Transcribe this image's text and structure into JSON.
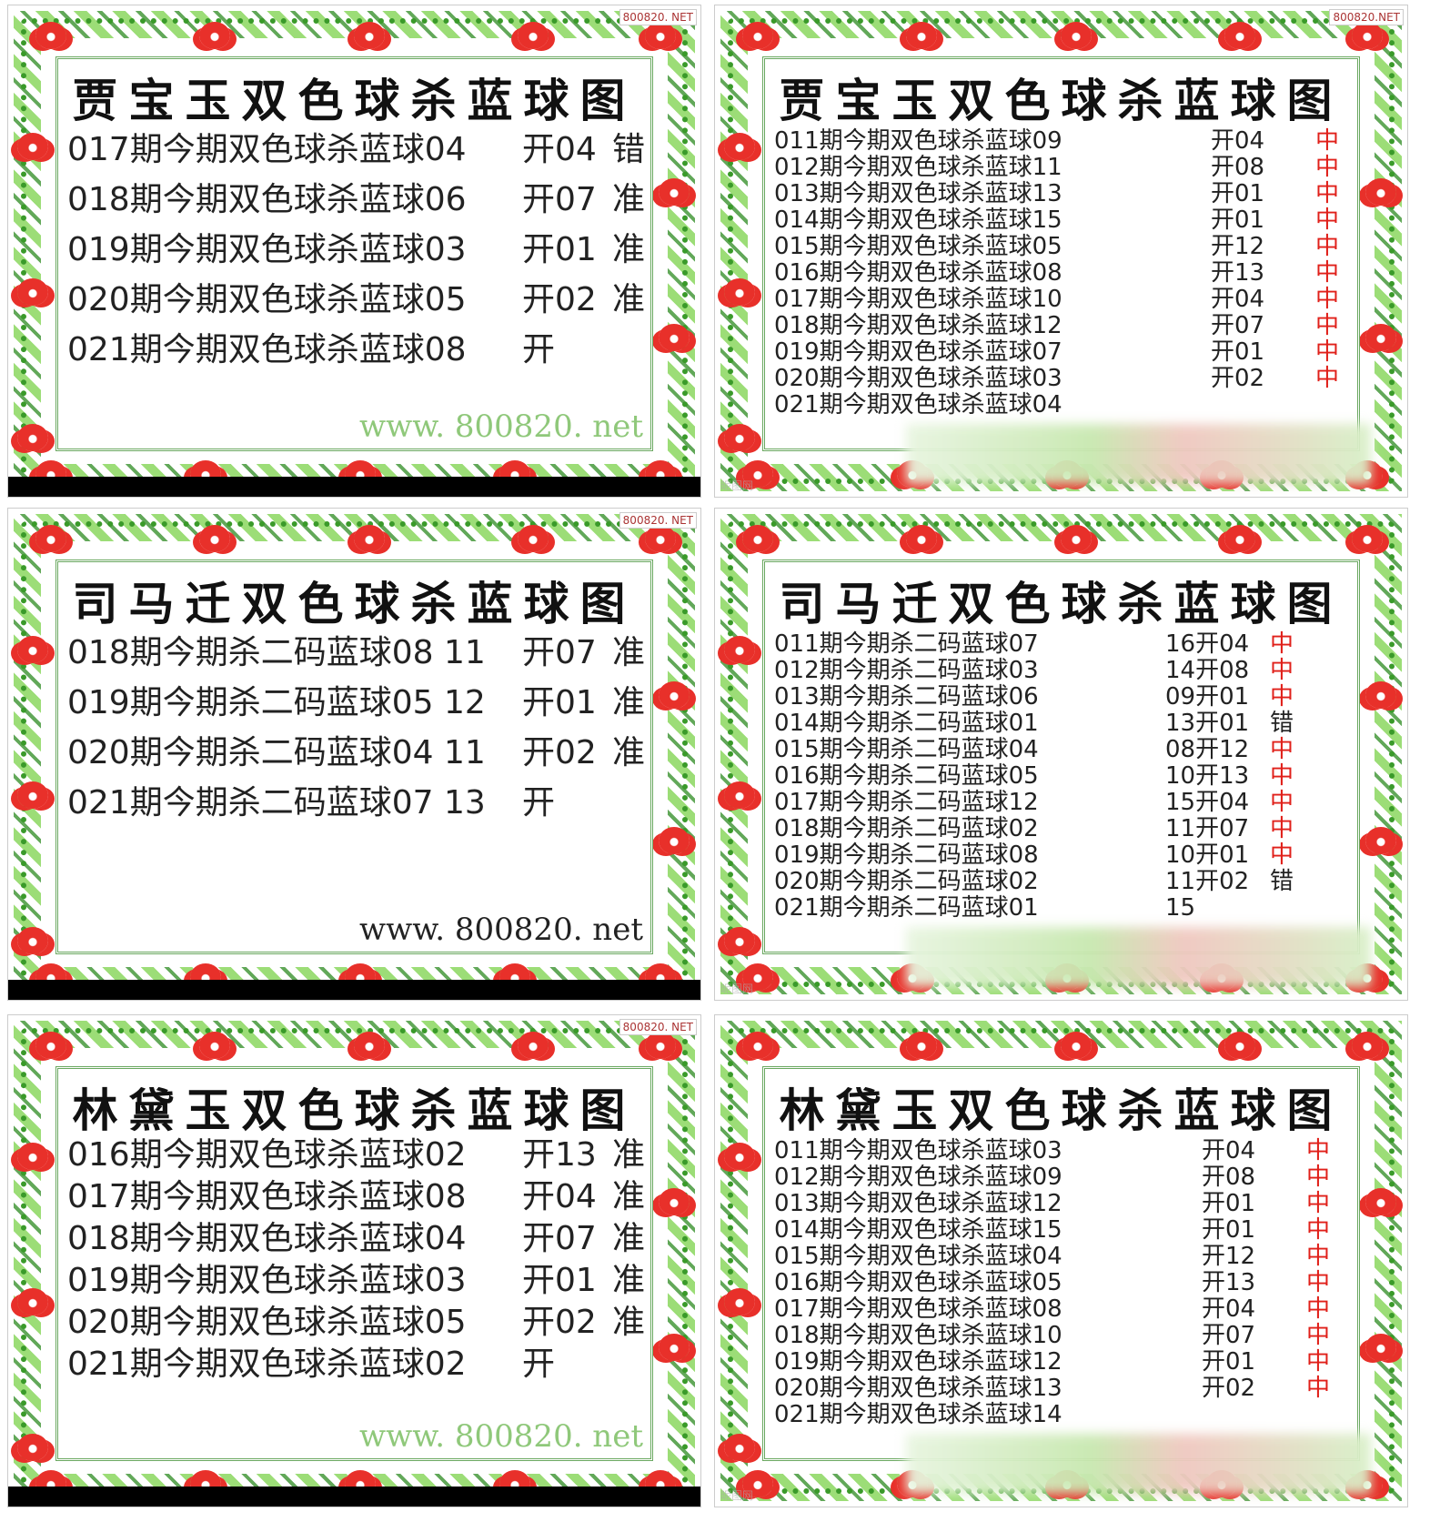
{
  "watermark": "800820. NET",
  "colors": {
    "hit": "#e0201a",
    "text": "#222222",
    "vine": "#3a9a2a",
    "flower": "#e8302a"
  },
  "panels": [
    {
      "title": "贾宝玉双色球杀蓝球图",
      "style": "large",
      "url": "www. 800820. net",
      "url_color": "#8fc87a",
      "watermark": "800820. NET",
      "rows": [
        {
          "text": "017期今期双色球杀蓝球04",
          "open": "开04",
          "status": "错"
        },
        {
          "text": "018期今期双色球杀蓝球06",
          "open": "开07",
          "status": "准"
        },
        {
          "text": "019期今期双色球杀蓝球03",
          "open": "开01",
          "status": "准"
        },
        {
          "text": "020期今期双色球杀蓝球05",
          "open": "开02",
          "status": "准"
        },
        {
          "text": "021期今期双色球杀蓝球08",
          "open": "开",
          "status": ""
        }
      ]
    },
    {
      "title": "贾宝玉双色球杀蓝球图",
      "style": "small",
      "watermark": "800820.NET",
      "rows": [
        {
          "text": "011期今期双色球杀蓝球09",
          "open": "开04",
          "status": "中"
        },
        {
          "text": "012期今期双色球杀蓝球11",
          "open": "开08",
          "status": "中"
        },
        {
          "text": "013期今期双色球杀蓝球13",
          "open": "开01",
          "status": "中"
        },
        {
          "text": "014期今期双色球杀蓝球15",
          "open": "开01",
          "status": "中"
        },
        {
          "text": "015期今期双色球杀蓝球05",
          "open": "开12",
          "status": "中"
        },
        {
          "text": "016期今期双色球杀蓝球08",
          "open": "开13",
          "status": "中"
        },
        {
          "text": "017期今期双色球杀蓝球10",
          "open": "开04",
          "status": "中"
        },
        {
          "text": "018期今期双色球杀蓝球12",
          "open": "开07",
          "status": "中"
        },
        {
          "text": "019期今期双色球杀蓝球07",
          "open": "开01",
          "status": "中"
        },
        {
          "text": "020期今期双色球杀蓝球03",
          "open": "开02",
          "status": "中"
        },
        {
          "text": "021期今期双色球杀蓝球04",
          "open": "",
          "status": ""
        }
      ]
    },
    {
      "title": "司马迁双色球杀蓝球图",
      "style": "large",
      "url": "www. 800820. net",
      "url_color": "#222222",
      "watermark": "800820. NET",
      "rows": [
        {
          "text": "018期今期杀二码蓝球08  11",
          "open": "开07",
          "status": "准"
        },
        {
          "text": "019期今期杀二码蓝球05  12",
          "open": "开01",
          "status": "准"
        },
        {
          "text": "020期今期杀二码蓝球04  11",
          "open": "开02",
          "status": "准"
        },
        {
          "text": "021期今期杀二码蓝球07  13",
          "open": "开",
          "status": ""
        }
      ]
    },
    {
      "title": "司马迁双色球杀蓝球图",
      "style": "small",
      "rows": [
        {
          "text": "011期今期杀二码蓝球07",
          "open": "16开04",
          "status": "中"
        },
        {
          "text": "012期今期杀二码蓝球03",
          "open": "14开08",
          "status": "中"
        },
        {
          "text": "013期今期杀二码蓝球06",
          "open": "09开01",
          "status": "中"
        },
        {
          "text": "014期今期杀二码蓝球01",
          "open": "13开01",
          "status": "错"
        },
        {
          "text": "015期今期杀二码蓝球04",
          "open": "08开12",
          "status": "中"
        },
        {
          "text": "016期今期杀二码蓝球05",
          "open": "10开13",
          "status": "中"
        },
        {
          "text": "017期今期杀二码蓝球12",
          "open": "15开04",
          "status": "中"
        },
        {
          "text": "018期今期杀二码蓝球02",
          "open": "11开07",
          "status": "中"
        },
        {
          "text": "019期今期杀二码蓝球08",
          "open": "10开01",
          "status": "中"
        },
        {
          "text": "020期今期杀二码蓝球02",
          "open": "11开02",
          "status": "错"
        },
        {
          "text": "021期今期杀二码蓝球01",
          "open": "15",
          "status": ""
        }
      ]
    },
    {
      "title": "林黛玉双色球杀蓝球图",
      "style": "large",
      "url": "www. 800820. net",
      "url_color": "#8fc87a",
      "watermark": "800820. NET",
      "rows": [
        {
          "text": "016期今期双色球杀蓝球02",
          "open": "开13",
          "status": "准"
        },
        {
          "text": "017期今期双色球杀蓝球08",
          "open": "开04",
          "status": "准"
        },
        {
          "text": "018期今期双色球杀蓝球04",
          "open": "开07",
          "status": "准"
        },
        {
          "text": "019期今期双色球杀蓝球03",
          "open": "开01",
          "status": "准"
        },
        {
          "text": "020期今期双色球杀蓝球05",
          "open": "开02",
          "status": "准"
        },
        {
          "text": "021期今期双色球杀蓝球02",
          "open": "开",
          "status": ""
        }
      ]
    },
    {
      "title": "林黛玉双色球杀蓝球图",
      "style": "small",
      "rows": [
        {
          "text": "011期今期双色球杀蓝球03",
          "open": "开04",
          "status": "中"
        },
        {
          "text": "012期今期双色球杀蓝球09",
          "open": "开08",
          "status": "中"
        },
        {
          "text": "013期今期双色球杀蓝球12",
          "open": "开01",
          "status": "中"
        },
        {
          "text": "014期今期双色球杀蓝球15",
          "open": "开01",
          "status": "中"
        },
        {
          "text": "015期今期双色球杀蓝球04",
          "open": "开12",
          "status": "中"
        },
        {
          "text": "016期今期双色球杀蓝球05",
          "open": "开13",
          "status": "中"
        },
        {
          "text": "017期今期双色球杀蓝球08",
          "open": "开04",
          "status": "中"
        },
        {
          "text": "018期今期双色球杀蓝球10",
          "open": "开07",
          "status": "中"
        },
        {
          "text": "019期今期双色球杀蓝球12",
          "open": "开01",
          "status": "中"
        },
        {
          "text": "020期今期双色球杀蓝球13",
          "open": "开02",
          "status": "中"
        },
        {
          "text": "021期今期双色球杀蓝球14",
          "open": "",
          "status": ""
        }
      ]
    }
  ]
}
